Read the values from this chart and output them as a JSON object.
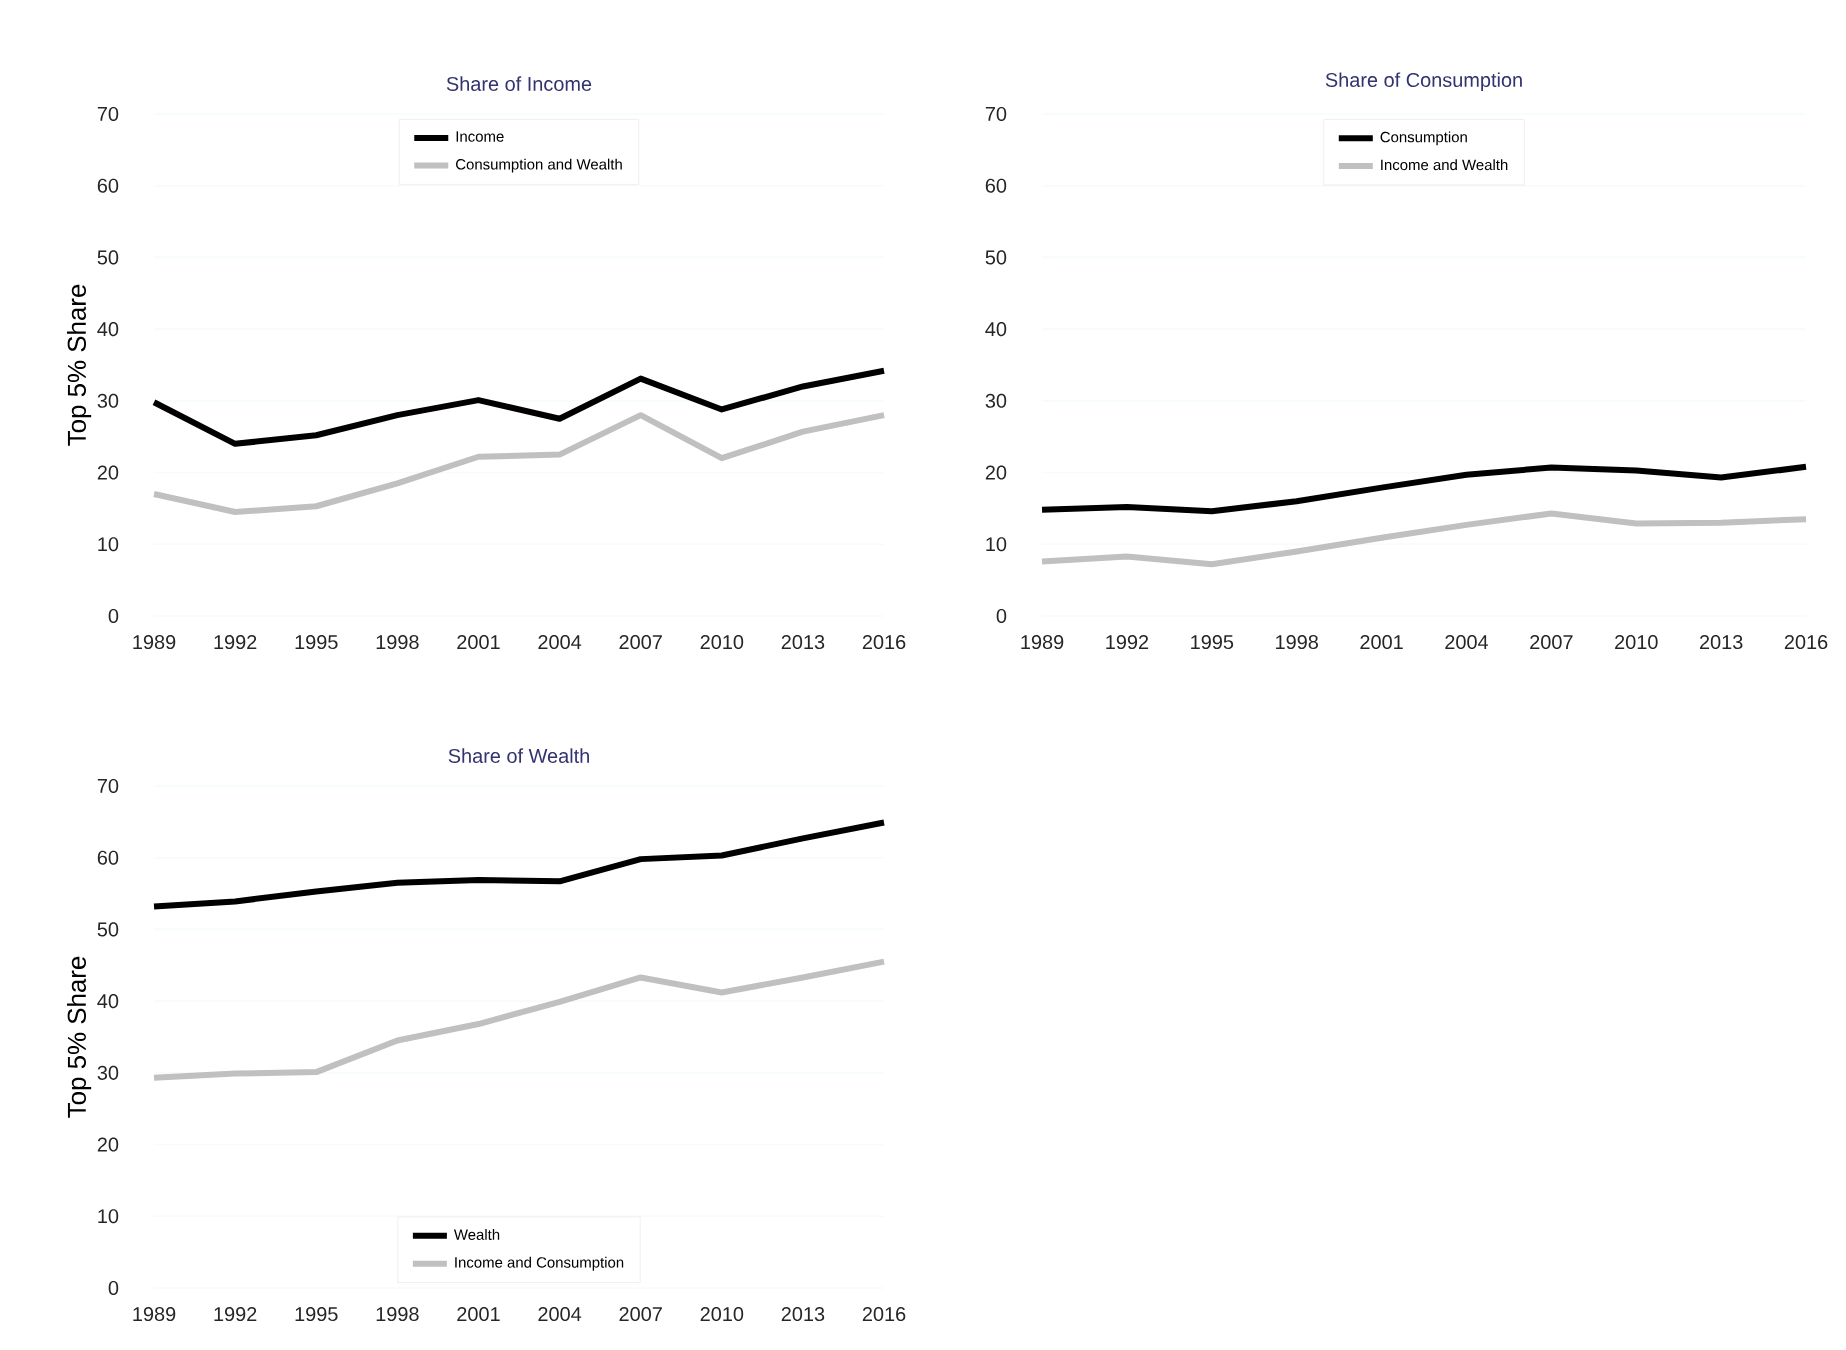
{
  "chart_data": [
    {
      "type": "line",
      "title": "Share of Income",
      "ylabel": "Top 5% Share",
      "x": [
        1989,
        1992,
        1995,
        1998,
        2001,
        2004,
        2007,
        2010,
        2013,
        2016
      ],
      "xlim": [
        1989,
        2016
      ],
      "ylim": [
        0,
        70
      ],
      "xticks": [
        1989,
        1992,
        1995,
        1998,
        2001,
        2004,
        2007,
        2010,
        2013,
        2016
      ],
      "yticks": [
        0,
        10,
        20,
        30,
        40,
        50,
        60,
        70
      ],
      "grid": "y",
      "legend": "top",
      "line_style": "solid",
      "marker": "none",
      "series": [
        {
          "name": "Income",
          "color": "#000000",
          "values": [
            29.8,
            24,
            25.2,
            28,
            30.1,
            27.5,
            33.1,
            28.8,
            32,
            34.2
          ]
        },
        {
          "name": "Consumption and Wealth",
          "color": "#c0c0c0",
          "values": [
            17,
            14.5,
            15.3,
            18.5,
            22.2,
            22.5,
            28,
            22,
            25.7,
            28
          ]
        }
      ]
    },
    {
      "type": "line",
      "title": "Share of Consumption",
      "x": [
        1989,
        1992,
        1995,
        1998,
        2001,
        2004,
        2007,
        2010,
        2013,
        2016
      ],
      "xlim": [
        1989,
        2016
      ],
      "ylim": [
        0,
        70
      ],
      "xticks": [
        1989,
        1992,
        1995,
        1998,
        2001,
        2004,
        2007,
        2010,
        2013,
        2016
      ],
      "yticks": [
        0,
        10,
        20,
        30,
        40,
        50,
        60,
        70
      ],
      "grid": "y",
      "legend": "top",
      "line_style": "solid",
      "marker": "none",
      "series": [
        {
          "name": "Consumption",
          "color": "#000000",
          "values": [
            14.8,
            15.2,
            14.6,
            16,
            17.9,
            19.7,
            20.7,
            20.3,
            19.3,
            20.8
          ]
        },
        {
          "name": "Income and Wealth",
          "color": "#c0c0c0",
          "values": [
            7.6,
            8.3,
            7.2,
            9,
            10.9,
            12.7,
            14.3,
            12.9,
            13,
            13.5
          ]
        }
      ]
    },
    {
      "type": "line",
      "title": "Share of Wealth",
      "ylabel": "Top 5% Share",
      "x": [
        1989,
        1992,
        1995,
        1998,
        2001,
        2004,
        2007,
        2010,
        2013,
        2016
      ],
      "xlim": [
        1989,
        2016
      ],
      "ylim": [
        0,
        70
      ],
      "xticks": [
        1989,
        1992,
        1995,
        1998,
        2001,
        2004,
        2007,
        2010,
        2013,
        2016
      ],
      "yticks": [
        0,
        10,
        20,
        30,
        40,
        50,
        60,
        70
      ],
      "grid": "y",
      "legend": "bottom",
      "line_style": "solid",
      "marker": "none",
      "series": [
        {
          "name": "Wealth",
          "color": "#000000",
          "values": [
            53.2,
            53.9,
            55.3,
            56.5,
            56.9,
            56.7,
            59.8,
            60.3,
            62.7,
            64.9
          ]
        },
        {
          "name": "Income and Consumption",
          "color": "#c0c0c0",
          "values": [
            29.3,
            29.9,
            30.1,
            34.5,
            36.8,
            39.9,
            43.3,
            41.2,
            43.3,
            45.5
          ]
        }
      ]
    }
  ]
}
